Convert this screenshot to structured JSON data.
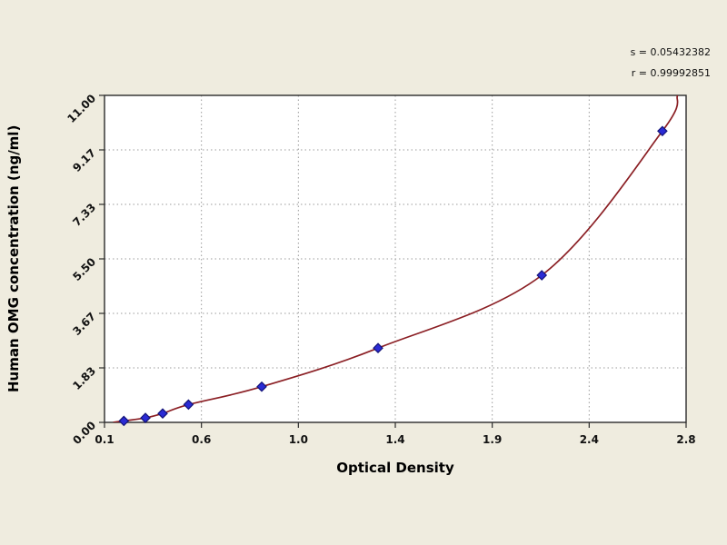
{
  "chart_data": {
    "type": "scatter",
    "title": "",
    "xlabel": "Optical Density",
    "ylabel": "Human  OMG concentration (ng/ml)",
    "x_ticks": [
      "0.1",
      "0.6",
      "1.0",
      "1.4",
      "1.9",
      "2.4",
      "2.8"
    ],
    "y_ticks": [
      "0.00",
      "1.83",
      "3.67",
      "5.50",
      "7.33",
      "9.17",
      "11.00"
    ],
    "xlim": [
      0.1,
      2.8
    ],
    "ylim": [
      0,
      11
    ],
    "grid": true,
    "legend": "none",
    "annotations": [
      "s = 0.05432382",
      "r = 0.99992851"
    ],
    "points": [
      [
        0.19,
        0.05
      ],
      [
        0.29,
        0.15
      ],
      [
        0.37,
        0.3
      ],
      [
        0.49,
        0.6
      ],
      [
        0.83,
        1.2
      ],
      [
        1.37,
        2.5
      ],
      [
        2.13,
        4.95
      ],
      [
        2.69,
        9.8
      ]
    ],
    "curve": [
      [
        0.14,
        0.0
      ],
      [
        0.19,
        0.05
      ],
      [
        0.29,
        0.15
      ],
      [
        0.37,
        0.3
      ],
      [
        0.49,
        0.6
      ],
      [
        0.83,
        1.2
      ],
      [
        1.37,
        2.5
      ],
      [
        2.13,
        4.95
      ],
      [
        2.69,
        9.8
      ],
      [
        2.76,
        11.0
      ]
    ],
    "colors": {
      "curve": "#8b1f24",
      "marker": "#2b2bd5",
      "marker_edge": "#141478",
      "grid": "#9b9b9b",
      "frame": "#2b2b2b",
      "plot_background": "#ffffff",
      "page_background": "#efecdf"
    }
  }
}
